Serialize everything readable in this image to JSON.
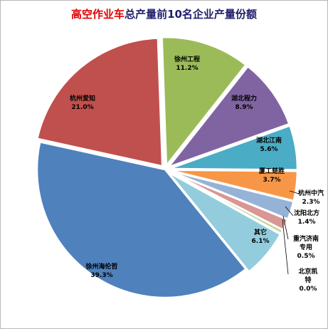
{
  "chart_data": {
    "type": "pie",
    "title_highlight": "高空作业车",
    "title_rest": "总产量前10名企业产量份额",
    "slices": [
      {
        "name": "徐州工程",
        "value": 11.2,
        "label": "11.2%",
        "color": "#9bbb59",
        "exploded": true
      },
      {
        "name": "湖北程力",
        "value": 8.9,
        "label": "8.9%",
        "color": "#8064a2",
        "exploded": true
      },
      {
        "name": "湖北江南",
        "value": 5.6,
        "label": "5.6%",
        "color": "#4bacc6",
        "exploded": true
      },
      {
        "name": "厦工楚胜",
        "value": 3.7,
        "label": "3.7%",
        "color": "#f79646",
        "exploded": true
      },
      {
        "name": "杭州中汽",
        "value": 2.3,
        "label": "2.3%",
        "color": "#95b3d7",
        "exploded": true
      },
      {
        "name": "沈阳北方",
        "value": 1.4,
        "label": "1.4%",
        "color": "#d99694",
        "exploded": true
      },
      {
        "name": "重汽济南专用",
        "value": 0.5,
        "label": "0.5%",
        "color": "#c3d69b",
        "exploded": true
      },
      {
        "name": "北京凯特",
        "value": 0.0,
        "label": "0.0%",
        "color": "#b3a2c7",
        "exploded": true
      },
      {
        "name": "其它",
        "value": 6.1,
        "label": "6.1%",
        "color": "#93cddd",
        "exploded": true
      },
      {
        "name": "徐州海伦哲",
        "value": 39.3,
        "label": "39.3%",
        "color": "#4f81bd",
        "exploded": false
      },
      {
        "name": "杭州爱知",
        "value": 21.0,
        "label": "21.0%",
        "color": "#c0504d",
        "exploded": true
      }
    ]
  }
}
